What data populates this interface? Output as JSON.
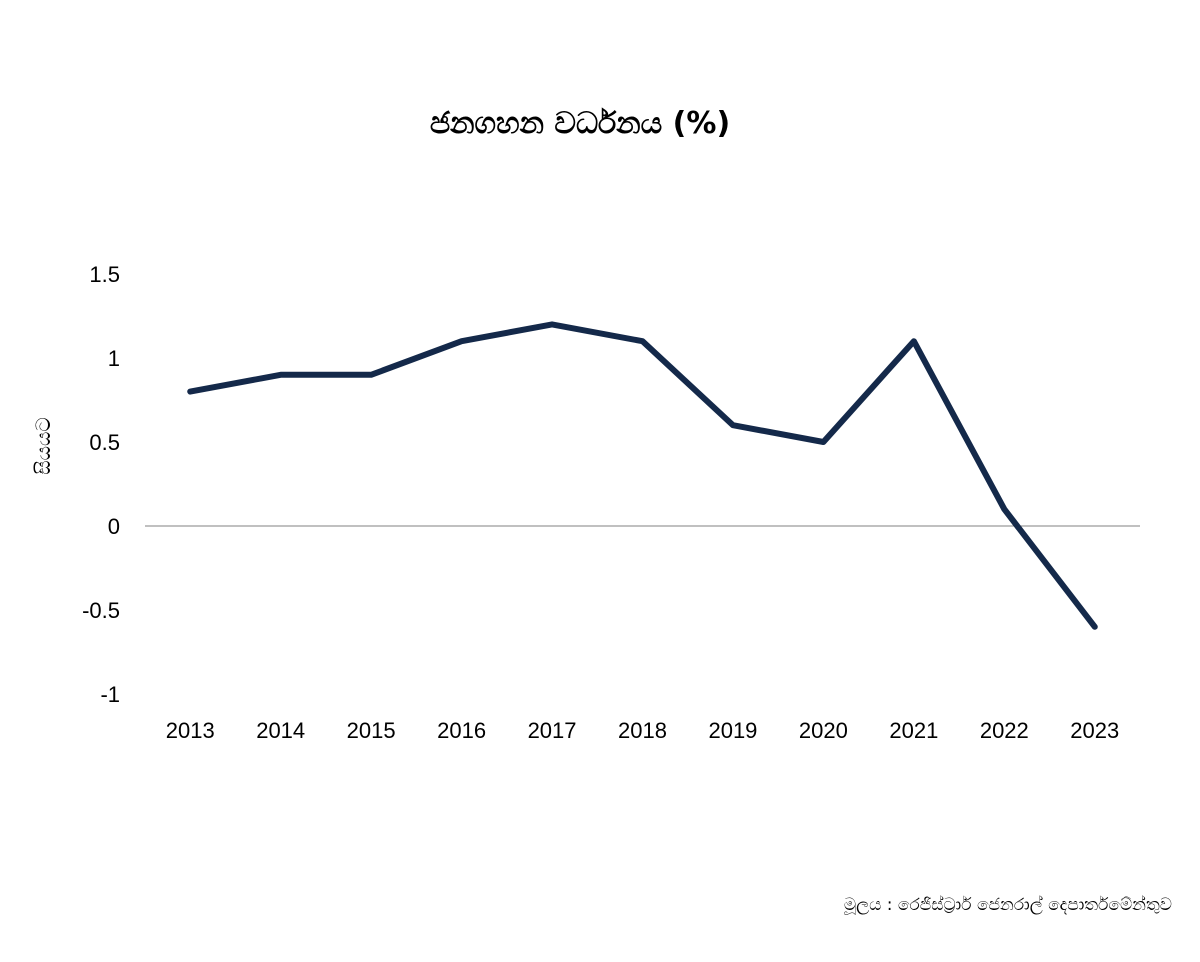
{
  "chart_data": {
    "type": "line",
    "title": "ජනගහන වර්ධනය (%)",
    "xlabel": "",
    "ylabel": "සියයට",
    "x": [
      "2013",
      "2014",
      "2015",
      "2016",
      "2017",
      "2018",
      "2019",
      "2020",
      "2021",
      "2022",
      "2023"
    ],
    "series": [
      {
        "values": [
          0.8,
          0.9,
          0.9,
          1.1,
          1.2,
          1.1,
          0.6,
          0.5,
          1.1,
          0.1,
          -0.6
        ]
      }
    ],
    "ylim": [
      -1,
      1.5
    ],
    "yticks": [
      "1.5",
      "1",
      "0.5",
      "0",
      "-0.5",
      "-1"
    ],
    "ytick_values": [
      1.5,
      1,
      0.5,
      0,
      -0.5,
      -1
    ],
    "grid": false,
    "zero_line": true,
    "line_color": "#14294a",
    "source": "මූලය : රෙජිස්ට්‍රාර් ජෙනරාල් දෙපාර්තමේන්තුව"
  }
}
